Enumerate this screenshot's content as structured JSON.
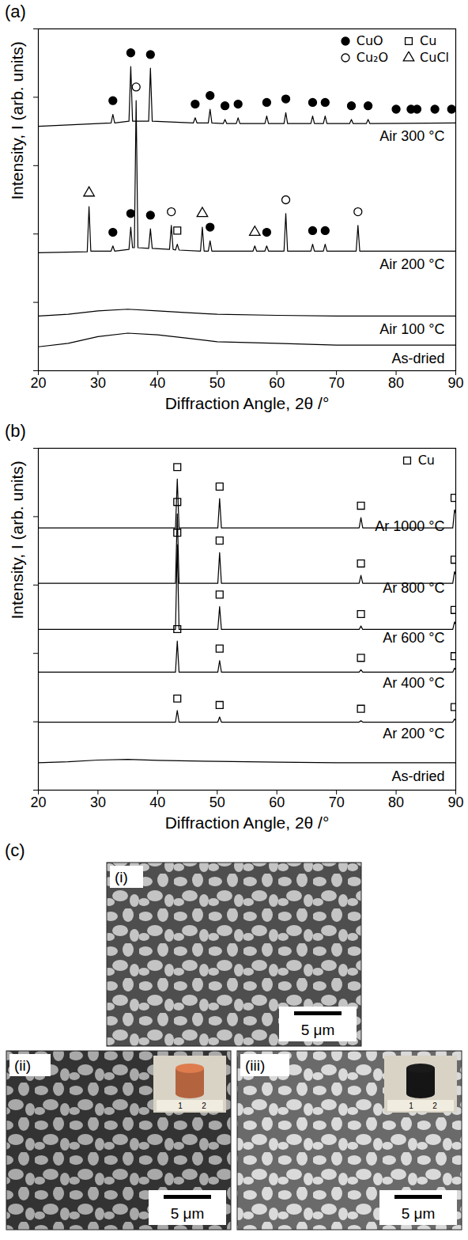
{
  "chart_data": [
    {
      "type": "line",
      "title": "(a)",
      "x_label": "Diffraction Angle, 2θ /°",
      "y_label": "Intensity, I (arb. units)",
      "xlim": [
        20,
        90
      ],
      "ylim": [
        0,
        100
      ],
      "xticks": [
        20,
        30,
        40,
        50,
        60,
        70,
        80,
        90
      ],
      "yticks": [
        0,
        20,
        40,
        60,
        80,
        100
      ],
      "tick_labels": "x",
      "grid": false,
      "legend": "top-right",
      "phases": [
        {
          "name": "CuO",
          "marker": "filled_circle"
        },
        {
          "name": "Cu",
          "marker": "open_square"
        },
        {
          "name": "Cu₂O",
          "marker": "open_circle"
        },
        {
          "name": "CuCl",
          "marker": "open_triangle"
        }
      ],
      "series": [
        {
          "name": "As-dried",
          "color": "#000000",
          "x": [
            20,
            25,
            30,
            35,
            40,
            45,
            50,
            60,
            70,
            80,
            90
          ],
          "values": [
            7,
            8,
            10,
            11,
            10.5,
            9.5,
            8.5,
            8,
            7.5,
            7.5,
            7.5
          ]
        },
        {
          "name": "Air 100 °C",
          "color": "#000000",
          "x": [
            20,
            25,
            30,
            35,
            40,
            45,
            50,
            60,
            70,
            80,
            90
          ],
          "values": [
            16,
            16.5,
            17.5,
            18,
            17.5,
            17,
            16.5,
            16.2,
            16,
            16,
            16
          ]
        },
        {
          "name": "Air 200 °C",
          "color": "#000000",
          "x": [
            20,
            28.2,
            28.5,
            28.8,
            32.2,
            32.5,
            32.8,
            35.2,
            35.5,
            35.8,
            36.1,
            36.4,
            36.7,
            38.5,
            38.8,
            39.1,
            42.0,
            42.3,
            42.6,
            43.0,
            43.3,
            43.6,
            47.2,
            47.5,
            47.8,
            48.5,
            48.8,
            49.1,
            56.0,
            56.3,
            56.6,
            58.0,
            58.3,
            58.6,
            61.2,
            61.5,
            61.8,
            65.7,
            66.0,
            66.3,
            67.8,
            68.1,
            68.4,
            73.3,
            73.6,
            73.9,
            90
          ],
          "values": [
            34.5,
            34.8,
            48,
            35,
            35,
            36.5,
            35,
            35.5,
            42,
            36,
            36,
            79,
            36,
            35.8,
            41.5,
            35.8,
            35.5,
            42.5,
            35.5,
            35.3,
            37,
            35.3,
            35,
            42,
            35,
            35,
            38,
            35,
            35,
            36.5,
            35,
            35,
            36.5,
            35,
            35,
            46,
            35,
            35,
            37,
            35,
            35,
            37,
            35,
            35,
            42.5,
            35,
            35
          ]
        },
        {
          "name": "Air 300 °C",
          "color": "#000000",
          "x": [
            20,
            32.2,
            32.5,
            32.8,
            35.2,
            35.5,
            35.8,
            38.5,
            38.8,
            39.1,
            46.0,
            46.3,
            46.6,
            48.5,
            48.8,
            49.1,
            51.0,
            51.3,
            51.6,
            53.2,
            53.5,
            53.8,
            58.0,
            58.3,
            58.6,
            61.2,
            61.5,
            61.8,
            65.7,
            66.0,
            66.3,
            67.8,
            68.1,
            68.4,
            72.2,
            72.5,
            72.8,
            75.0,
            75.3,
            75.6,
            90
          ],
          "values": [
            71.5,
            72.5,
            75,
            72.5,
            73,
            89,
            73,
            73,
            88.5,
            73,
            72.5,
            74,
            72.5,
            72.5,
            76.5,
            72.5,
            72.3,
            73.5,
            72.3,
            72.3,
            74,
            72.3,
            72.3,
            74.5,
            72.3,
            72.3,
            75.5,
            72.3,
            72.3,
            74.5,
            72.3,
            72.3,
            74.5,
            72.3,
            72.3,
            73.5,
            72.3,
            72.3,
            73.5,
            72.3,
            72.5
          ]
        }
      ],
      "peak_markers": [
        {
          "phase": "CuO",
          "x": 32.5,
          "y": 79
        },
        {
          "phase": "CuO",
          "x": 35.5,
          "y": 93
        },
        {
          "phase": "CuO",
          "x": 38.8,
          "y": 92.5
        },
        {
          "phase": "CuO",
          "x": 46.3,
          "y": 78
        },
        {
          "phase": "CuO",
          "x": 48.8,
          "y": 80.5
        },
        {
          "phase": "CuO",
          "x": 51.3,
          "y": 77.5
        },
        {
          "phase": "CuO",
          "x": 53.5,
          "y": 78
        },
        {
          "phase": "CuO",
          "x": 58.3,
          "y": 78.5
        },
        {
          "phase": "CuO",
          "x": 61.5,
          "y": 79.5
        },
        {
          "phase": "CuO",
          "x": 66,
          "y": 78.5
        },
        {
          "phase": "CuO",
          "x": 68.1,
          "y": 78.5
        },
        {
          "phase": "CuO",
          "x": 72.5,
          "y": 77.5
        },
        {
          "phase": "CuO",
          "x": 75.3,
          "y": 77.5
        },
        {
          "phase": "CuO",
          "x": 80,
          "y": 76.5
        },
        {
          "phase": "CuO",
          "x": 82.5,
          "y": 76.5
        },
        {
          "phase": "CuO",
          "x": 83.5,
          "y": 76.5
        },
        {
          "phase": "CuO",
          "x": 86.5,
          "y": 76.5
        },
        {
          "phase": "CuO",
          "x": 89.3,
          "y": 76.5
        },
        {
          "phase": "CuCl",
          "x": 28.5,
          "y": 52
        },
        {
          "phase": "CuO",
          "x": 32.5,
          "y": 40.5
        },
        {
          "phase": "CuO",
          "x": 35.5,
          "y": 46
        },
        {
          "phase": "Cu₂O",
          "x": 36.4,
          "y": 83
        },
        {
          "phase": "CuO",
          "x": 38.8,
          "y": 45.5
        },
        {
          "phase": "Cu₂O",
          "x": 42.3,
          "y": 46.5
        },
        {
          "phase": "Cu",
          "x": 43.3,
          "y": 41
        },
        {
          "phase": "CuCl",
          "x": 47.5,
          "y": 46
        },
        {
          "phase": "CuO",
          "x": 48.8,
          "y": 42
        },
        {
          "phase": "CuCl",
          "x": 56.3,
          "y": 40.5
        },
        {
          "phase": "CuO",
          "x": 58.3,
          "y": 40.5
        },
        {
          "phase": "Cu₂O",
          "x": 61.5,
          "y": 50
        },
        {
          "phase": "CuO",
          "x": 66,
          "y": 41
        },
        {
          "phase": "CuO",
          "x": 68.1,
          "y": 41
        },
        {
          "phase": "Cu₂O",
          "x": 73.6,
          "y": 46.5
        }
      ]
    },
    {
      "type": "line",
      "title": "(b)",
      "x_label": "Diffraction Angle, 2θ /°",
      "y_label": "Intensity, I (arb. units)",
      "xlim": [
        20,
        90
      ],
      "ylim": [
        0,
        100
      ],
      "xticks": [
        20,
        30,
        40,
        50,
        60,
        70,
        80,
        90
      ],
      "yticks": [
        0,
        20,
        40,
        60,
        80,
        100
      ],
      "tick_labels": "x",
      "grid": false,
      "legend": "top-right",
      "phases": [
        {
          "name": "Cu",
          "marker": "open_square"
        }
      ],
      "series": [
        {
          "name": "As-dried",
          "color": "#000000",
          "x": [
            20,
            25,
            30,
            35,
            40,
            50,
            60,
            70,
            80,
            90
          ],
          "values": [
            8,
            8.3,
            8.8,
            9,
            8.7,
            8.4,
            8.2,
            8,
            8,
            8
          ]
        },
        {
          "name": "Ar 200 °C",
          "color": "#000000",
          "x": [
            20,
            43.0,
            43.3,
            43.6,
            50.1,
            50.4,
            50.7,
            73.8,
            74.1,
            74.4,
            89.5,
            89.8,
            90
          ],
          "values": [
            19.9,
            19.9,
            23.3,
            19.9,
            19.9,
            21.4,
            19.9,
            19.9,
            20.3,
            19.9,
            19.9,
            20.8,
            20.4
          ]
        },
        {
          "name": "Ar 400 °C",
          "color": "#000000",
          "x": [
            20,
            43.0,
            43.3,
            43.6,
            50.1,
            50.4,
            50.7,
            73.8,
            74.1,
            74.4,
            89.5,
            89.8,
            90
          ],
          "values": [
            34.5,
            34.5,
            43.6,
            34.5,
            34.5,
            37.9,
            34.5,
            34.5,
            35.2,
            34.5,
            34.5,
            35.7,
            35.2
          ]
        },
        {
          "name": "Ar 600 °C",
          "color": "#000000",
          "x": [
            20,
            43.0,
            43.3,
            43.6,
            50.1,
            50.4,
            50.7,
            73.8,
            74.1,
            74.4,
            89.5,
            89.8,
            90
          ],
          "values": [
            47,
            47,
            71.8,
            47,
            47,
            53.7,
            47,
            47,
            48,
            47,
            47,
            49.2,
            48.5
          ]
        },
        {
          "name": "Ar 800 °C",
          "color": "#000000",
          "x": [
            20,
            43.0,
            43.3,
            43.6,
            50.1,
            50.4,
            50.7,
            73.8,
            74.1,
            74.4,
            89.5,
            89.8,
            90
          ],
          "values": [
            60.5,
            60.5,
            80.8,
            60.5,
            60.5,
            69.5,
            60.5,
            60.5,
            62.8,
            60.5,
            60.5,
            63.9,
            63
          ]
        },
        {
          "name": "Ar 1000 °C",
          "color": "#000000",
          "x": [
            20,
            43.0,
            43.3,
            43.6,
            50.1,
            50.4,
            50.7,
            73.8,
            74.1,
            74.4,
            89.5,
            89.8,
            90
          ],
          "values": [
            76.7,
            76.7,
            91,
            76.7,
            76.7,
            85.3,
            76.7,
            76.7,
            79.7,
            76.7,
            76.7,
            82,
            81
          ]
        }
      ],
      "peak_markers": [
        {
          "phase": "Cu",
          "x": 43.3,
          "y": 26.8
        },
        {
          "phase": "Cu",
          "x": 50.4,
          "y": 24.9
        },
        {
          "phase": "Cu",
          "x": 74.1,
          "y": 23.8
        },
        {
          "phase": "Cu",
          "x": 89.8,
          "y": 24.3
        },
        {
          "phase": "Cu",
          "x": 43.3,
          "y": 47.1
        },
        {
          "phase": "Cu",
          "x": 50.4,
          "y": 41.4
        },
        {
          "phase": "Cu",
          "x": 74.1,
          "y": 38.7
        },
        {
          "phase": "Cu",
          "x": 89.8,
          "y": 39.2
        },
        {
          "phase": "Cu",
          "x": 43.3,
          "y": 75.3
        },
        {
          "phase": "Cu",
          "x": 50.4,
          "y": 57.2
        },
        {
          "phase": "Cu",
          "x": 74.1,
          "y": 51.5
        },
        {
          "phase": "Cu",
          "x": 89.8,
          "y": 52.7
        },
        {
          "phase": "Cu",
          "x": 43.3,
          "y": 84.3
        },
        {
          "phase": "Cu",
          "x": 50.4,
          "y": 73
        },
        {
          "phase": "Cu",
          "x": 74.1,
          "y": 66.3
        },
        {
          "phase": "Cu",
          "x": 89.8,
          "y": 67.4
        },
        {
          "phase": "Cu",
          "x": 43.3,
          "y": 94.5
        },
        {
          "phase": "Cu",
          "x": 50.4,
          "y": 88.8
        },
        {
          "phase": "Cu",
          "x": 74.1,
          "y": 83.2
        },
        {
          "phase": "Cu",
          "x": 89.8,
          "y": 85.5
        }
      ]
    }
  ],
  "micrographs": {
    "title": "(c)",
    "panels": [
      {
        "label": "(i)",
        "scale_bar": "5 μm"
      },
      {
        "label": "(ii)",
        "scale_bar": "5 μm",
        "inset": {
          "color": "#b3643f",
          "ruler_labels": [
            "1",
            "2"
          ]
        }
      },
      {
        "label": "(iii)",
        "scale_bar": "5 μm",
        "inset": {
          "color": "#151515",
          "ruler_labels": [
            "1",
            "2"
          ]
        }
      }
    ]
  }
}
